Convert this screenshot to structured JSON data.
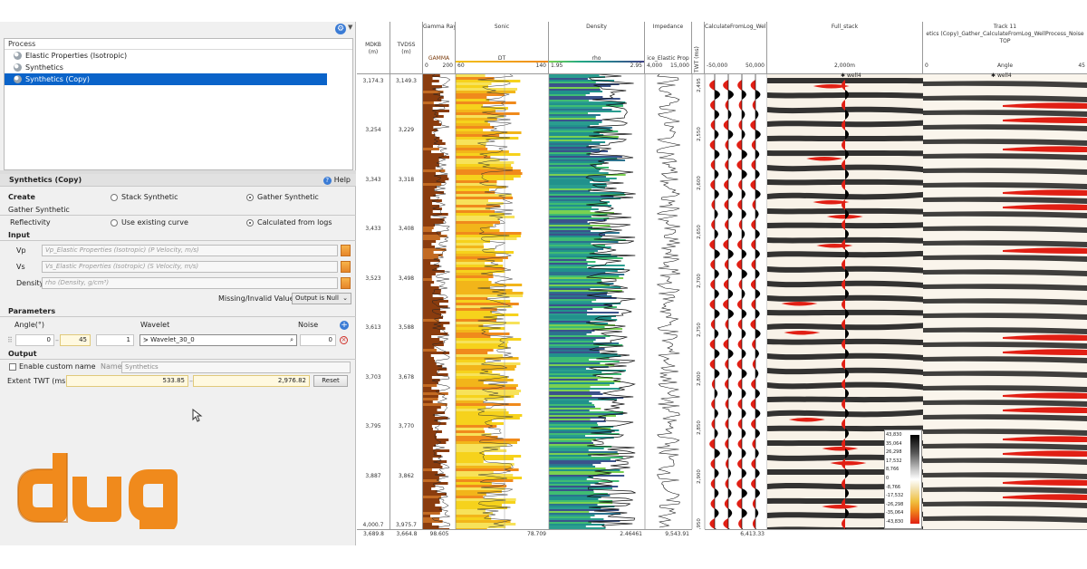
{
  "left_panel": {
    "process_header": "Process",
    "process_items": [
      {
        "label": "Elastic Properties (Isotropic)",
        "selected": false
      },
      {
        "label": "Synthetics",
        "selected": false
      },
      {
        "label": "Synthetics (Copy)",
        "selected": true
      }
    ],
    "form": {
      "title": "Synthetics (Copy)",
      "help_label": "Help",
      "create_label": "Create",
      "create_options": [
        "Stack Synthetic",
        "Gather Synthetic"
      ],
      "create_selected": "Gather Synthetic",
      "gather_synthetic_label": "Gather Synthetic",
      "reflectivity_label": "Reflectivity",
      "reflectivity_options": [
        "Use existing curve",
        "Calculated from logs"
      ],
      "reflectivity_selected": "Calculated from logs",
      "input_section": "Input",
      "vp_label": "Vp",
      "vp_value": "Vp_Elastic Properties (Isotropic) (P Velocity, m/s)",
      "vs_label": "Vs",
      "vs_value": "Vs_Elastic Properties (Isotropic) (S Velocity, m/s)",
      "density_label": "Density",
      "density_value": "rho (Density, g/cm³)",
      "missing_label": "Missing/Invalid Values",
      "missing_value": "Output is Null",
      "parameters_section": "Parameters",
      "angle_label": "Angle(°)",
      "wavelet_label": "Wavelet",
      "noise_label": "Noise",
      "angle_from": "0",
      "angle_to": "45",
      "angle_step": "1",
      "wavelet_value": "Wavelet_30_0",
      "noise_value": "0",
      "output_section": "Output",
      "enable_custom_label": "Enable custom name",
      "name_label": "Name",
      "name_value": "Synthetics",
      "extent_label": "Extent",
      "twt_label": "TWT (ms)",
      "twt_from": "533.85",
      "twt_to": "2,976.82",
      "reset_label": "Reset"
    }
  },
  "logo_text": "dug",
  "plot": {
    "depth_columns": [
      {
        "title": "MDKB",
        "unit": "(m)",
        "ticks": [
          "3,174.3",
          "3,254",
          "3,343",
          "3,433",
          "3,523",
          "3,613",
          "3,703",
          "3,795",
          "3,887",
          "4,000.7"
        ],
        "footer": "3,689.8"
      },
      {
        "title": "TVDSS",
        "unit": "(m)",
        "ticks": [
          "3,149.3",
          "3,229",
          "3,318",
          "3,408",
          "3,498",
          "3,588",
          "3,678",
          "3,770",
          "3,862",
          "3,975.7"
        ],
        "footer": "3,664.8"
      }
    ],
    "tracks": [
      {
        "name": "Gamma Ray",
        "curve": "GAMMA",
        "min": "0",
        "max": "200",
        "footer": "98.605"
      },
      {
        "name": "Sonic",
        "curve": "DT",
        "min": "60",
        "max": "140",
        "footer": "78.709"
      },
      {
        "name": "Density",
        "curve": "rho",
        "min": "1.95",
        "max": "2.95",
        "footer": "2.46461"
      },
      {
        "name": "Impedance",
        "curve": "ice_Elastic Prop",
        "min": "4,000",
        "max": "15,000",
        "footer": "9,543.91"
      }
    ],
    "twt_column": {
      "title": "TWT (ms)",
      "ticks": [
        "2,495",
        "2,550",
        "2,600",
        "2,650",
        "2,700",
        "2,750",
        "2,800",
        "2,850",
        "2,900",
        "2,950"
      ]
    },
    "seismic_tracks": [
      {
        "name": "CalculateFromLog_Well",
        "min": "-50,000",
        "max": "50,000",
        "footer": "6,413.33"
      },
      {
        "name": "Full_stack",
        "sub": "2,000m",
        "well_label": "well4"
      },
      {
        "name": "Track 11",
        "curve": "etics (Copy)_Gather_CalculateFromLog_WellProcess_Noise",
        "sub": "TOP",
        "axis_label": "Angle",
        "min": "0",
        "max": "45",
        "well_label": "well4"
      }
    ],
    "colorbar": {
      "ticks": [
        "43,830",
        "35,064",
        "26,298",
        "17,532",
        "8,766",
        "0",
        "-8,766",
        "-17,532",
        "-26,298",
        "-35,064",
        "-43,830"
      ]
    }
  }
}
